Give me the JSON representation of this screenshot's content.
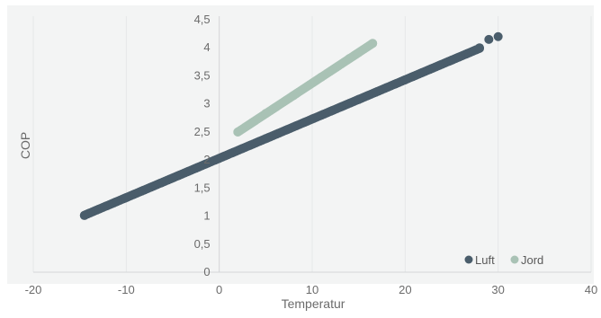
{
  "chart_data": {
    "type": "scatter",
    "xlabel": "Temperatur",
    "ylabel": "COP",
    "xlim": [
      -20,
      40
    ],
    "ylim": [
      0,
      4.5
    ],
    "x_ticks": [
      -20,
      -10,
      0,
      10,
      20,
      30,
      40
    ],
    "x_tick_labels": [
      "-20",
      "-10",
      "0",
      "10",
      "20",
      "30",
      "40"
    ],
    "y_ticks": [
      0,
      0.5,
      1,
      1.5,
      2,
      2.5,
      3,
      3.5,
      4,
      4.5
    ],
    "y_tick_labels": [
      "0",
      "0,5",
      "1",
      "1,5",
      "2",
      "2,5",
      "3",
      "3,5",
      "4",
      "4,5"
    ],
    "grid": true,
    "legend_position": "bottom-right",
    "series": [
      {
        "name": "Luft",
        "color": "#4a5d6b",
        "x_range": [
          -14.5,
          28
        ],
        "fit": {
          "slope": 0.07,
          "intercept": 2.03
        },
        "points": [
          [
            -14.5,
            1.01
          ],
          [
            -10,
            1.33
          ],
          [
            -5,
            1.68
          ],
          [
            0,
            2.03
          ],
          [
            5,
            2.38
          ],
          [
            10,
            2.73
          ],
          [
            15,
            3.08
          ],
          [
            20,
            3.43
          ],
          [
            25,
            3.78
          ],
          [
            28,
            4.0
          ],
          [
            29,
            4.15
          ],
          [
            30,
            4.2
          ]
        ]
      },
      {
        "name": "Jord",
        "color": "#a9c2b5",
        "x_range": [
          2,
          16.5
        ],
        "fit": {
          "slope": 0.109,
          "intercept": 2.28
        },
        "points": [
          [
            2,
            2.5
          ],
          [
            5,
            2.83
          ],
          [
            8,
            3.15
          ],
          [
            11,
            3.48
          ],
          [
            14,
            3.81
          ],
          [
            16.5,
            4.08
          ]
        ]
      }
    ]
  }
}
